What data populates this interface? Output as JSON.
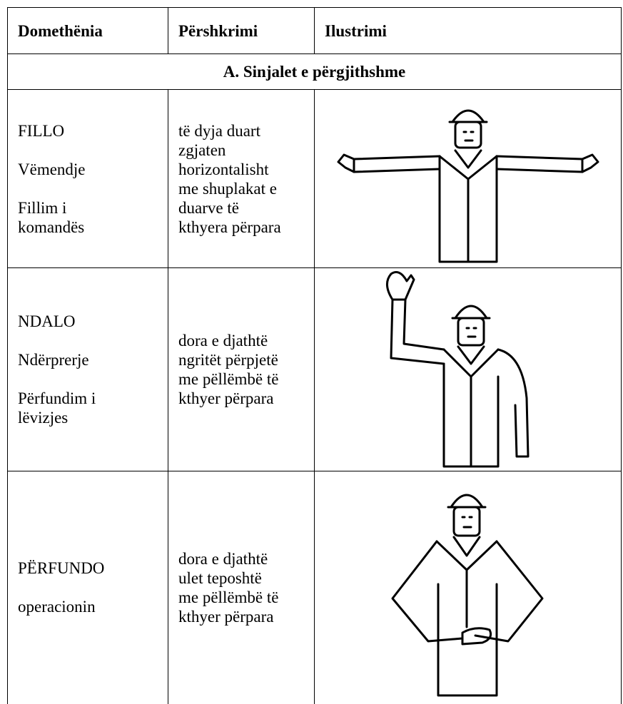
{
  "table": {
    "headers": [
      "Domethënia",
      "Përshkrimi",
      "Ilustrimi"
    ],
    "section": "A. Sinjalet e përgjithshme",
    "rows": [
      {
        "meaning": [
          [
            "FILLO"
          ],
          [
            "Vëmendje"
          ],
          [
            "Fillim i",
            "komandës"
          ]
        ],
        "description": [
          "të dyja duart",
          "zgjaten",
          "horizontalisht",
          "me shuplakat e",
          "duarve të",
          "kthyera përpara"
        ]
      },
      {
        "meaning": [
          [
            "NDALO"
          ],
          [
            "Ndërprerje"
          ],
          [
            "Përfundim i",
            "lëvizjes"
          ]
        ],
        "description": [
          "dora e djathtë",
          "ngritët përpjetë",
          "me pëllëmbë të",
          "kthyer përpara"
        ]
      },
      {
        "meaning": [
          [
            "PËRFUNDO"
          ],
          [
            "operacionin"
          ]
        ],
        "description": [
          "dora e djathtë",
          "ulet teposhtë",
          "me pëllëmbë të",
          "kthyer përpara"
        ]
      }
    ]
  }
}
